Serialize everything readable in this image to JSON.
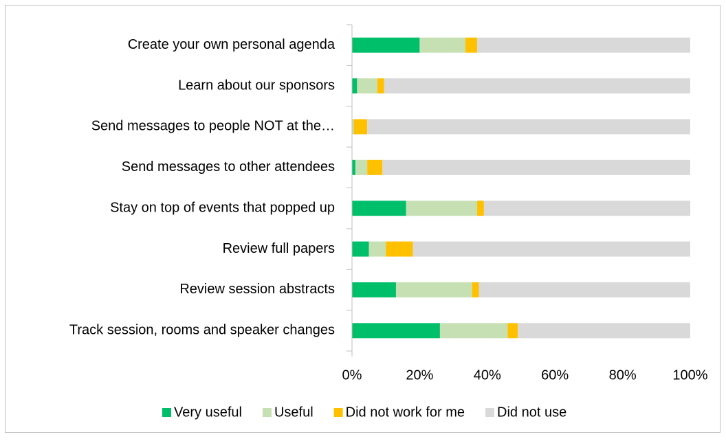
{
  "chart_data": {
    "type": "stacked_bar_horizontal",
    "categories": [
      "Create your own personal agenda",
      "Learn about our sponsors",
      "Send messages to people NOT at the…",
      "Send messages to other attendees",
      "Stay on top of events that popped up",
      "Review full  papers",
      "Review session abstracts",
      "Track session, rooms  and speaker changes"
    ],
    "series": [
      {
        "name": "Very useful",
        "color": "#00bf6a",
        "values": [
          20,
          1.5,
          0,
          1,
          16,
          5,
          13,
          26
        ]
      },
      {
        "name": "Useful",
        "color": "#c6e0b4",
        "values": [
          13.5,
          6,
          0.5,
          3.5,
          21,
          5,
          22.5,
          20
        ]
      },
      {
        "name": "Did not work for me",
        "color": "#ffc000",
        "values": [
          3.5,
          2,
          4,
          4.5,
          2,
          8,
          2,
          3
        ]
      },
      {
        "name": "Did not use",
        "color": "#d9d9d9",
        "values": [
          63,
          90.5,
          95.5,
          91,
          61,
          82,
          62.5,
          51
        ]
      }
    ],
    "xlim": [
      0,
      100
    ],
    "xticks": [
      {
        "value": 0,
        "label": "0%"
      },
      {
        "value": 20,
        "label": "20%"
      },
      {
        "value": 40,
        "label": "40%"
      },
      {
        "value": 60,
        "label": "60%"
      },
      {
        "value": 80,
        "label": "80%"
      },
      {
        "value": 100,
        "label": "100%"
      }
    ],
    "legend": "bottom"
  }
}
